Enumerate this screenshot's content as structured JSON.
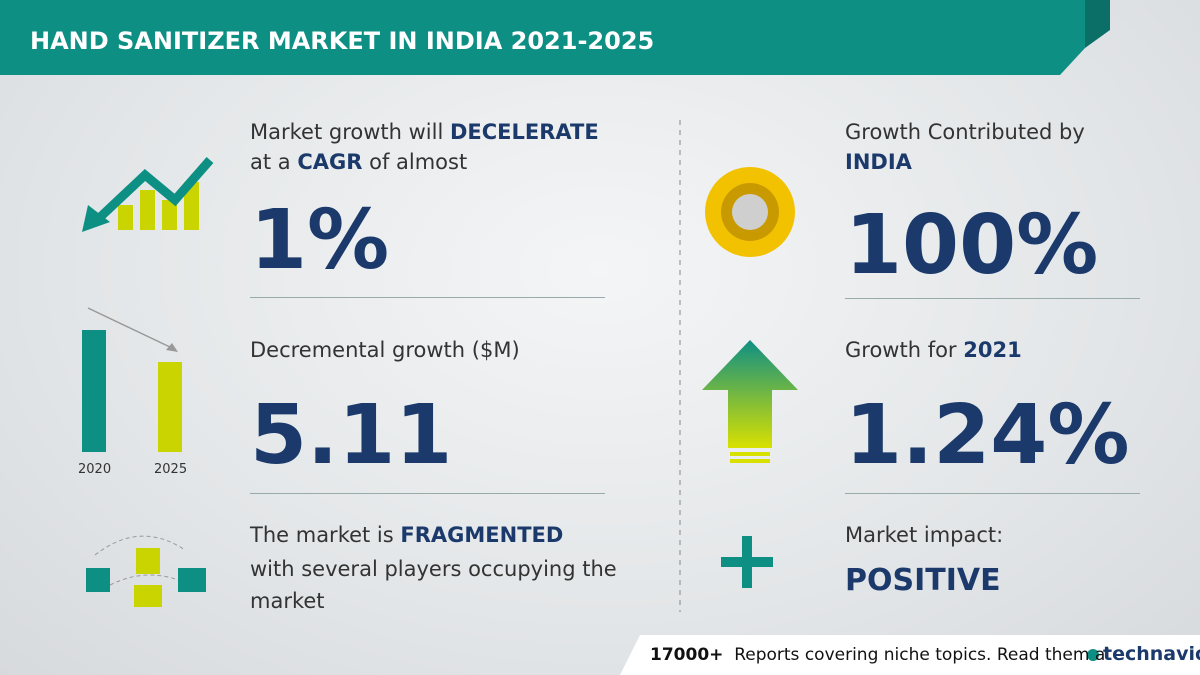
{
  "header": {
    "title": "HAND SANITIZER MARKET IN INDIA 2021-2025"
  },
  "left": {
    "growth": {
      "pre": "Market growth will",
      "emphasis": "DECELERATE",
      "line2_pre": "at a",
      "line2_emphasis": "CAGR",
      "line2_post": "of almost",
      "value": "1%"
    },
    "decremental": {
      "label": "Decremental growth ($M)",
      "value": "5.11",
      "icon_labels": [
        "2020",
        "2025"
      ]
    },
    "structure": {
      "pre": "The market is",
      "emphasis": "FRAGMENTED",
      "line2": "with several players occupying the",
      "line3": "market"
    }
  },
  "right": {
    "contribution": {
      "label": "Growth Contributed by",
      "region": "INDIA",
      "value": "100%"
    },
    "yoy": {
      "label": "Growth for",
      "year": "2021",
      "value": "1.24%"
    },
    "impact": {
      "label": "Market impact:",
      "value": "POSITIVE"
    }
  },
  "footer": {
    "count": "17000+",
    "text": "Reports covering niche topics. Read them at",
    "brand": "technavio"
  }
}
